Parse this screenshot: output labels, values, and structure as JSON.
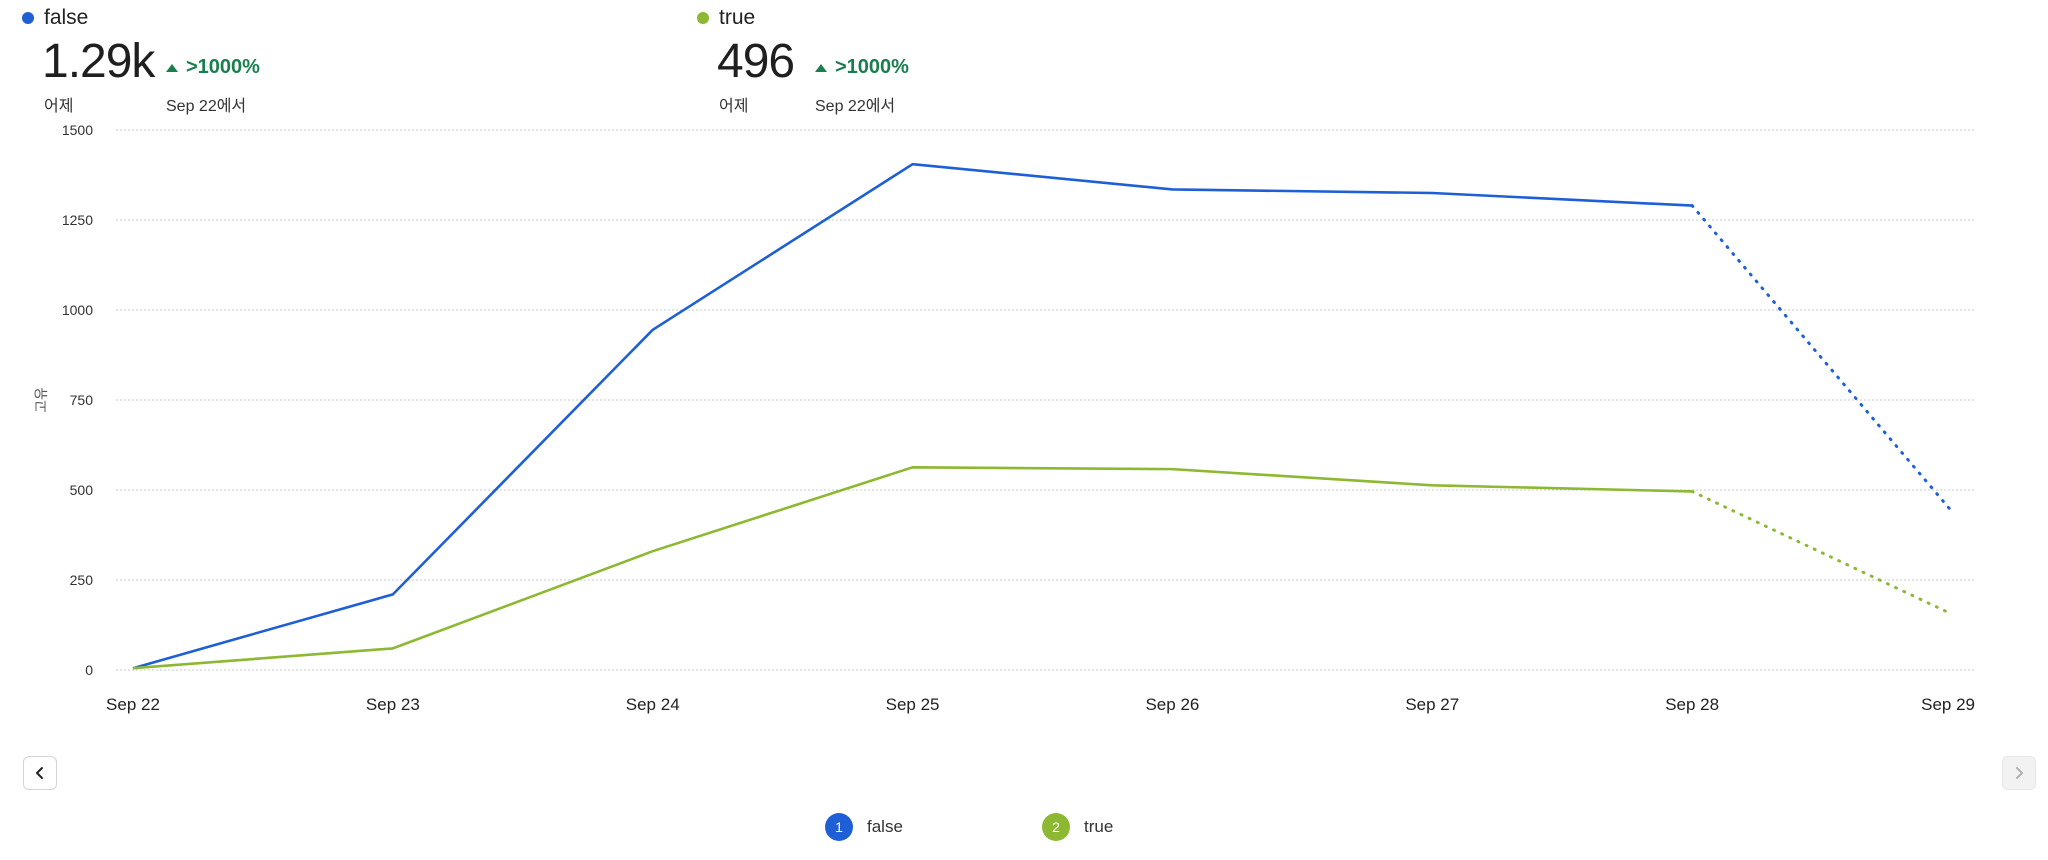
{
  "colors": {
    "false": "#1f5fd6",
    "true": "#8cb832",
    "positive": "#1a7f4e",
    "grid": "#c9c9c9"
  },
  "kpis": [
    {
      "label": "false",
      "value": "1.29k",
      "sub": "어제",
      "change": ">1000%",
      "compare": "Sep 22에서"
    },
    {
      "label": "true",
      "value": "496",
      "sub": "어제",
      "change": ">1000%",
      "compare": "Sep 22에서"
    }
  ],
  "chart_data": {
    "type": "line",
    "ylabel": "고유",
    "ylim": [
      0,
      1500
    ],
    "yticks": [
      0,
      250,
      500,
      750,
      1000,
      1250,
      1500
    ],
    "categories": [
      "Sep 22",
      "Sep 23",
      "Sep 24",
      "Sep 25",
      "Sep 26",
      "Sep 27",
      "Sep 28",
      "Sep 29"
    ],
    "grid": true,
    "series": [
      {
        "name": "false",
        "color": "#1f5fd6",
        "values": [
          5,
          210,
          945,
          1405,
          1335,
          1325,
          1290,
          440
        ],
        "partial_last": true
      },
      {
        "name": "true",
        "color": "#8cb832",
        "values": [
          5,
          60,
          330,
          563,
          558,
          513,
          496,
          155
        ],
        "partial_last": true
      }
    ]
  },
  "legend": [
    {
      "index": "1",
      "label": "false",
      "color": "#1f5fd6"
    },
    {
      "index": "2",
      "label": "true",
      "color": "#8cb832"
    }
  ],
  "nav": {
    "prev_icon": "chevron-left-icon",
    "next_icon": "chevron-right-icon"
  }
}
